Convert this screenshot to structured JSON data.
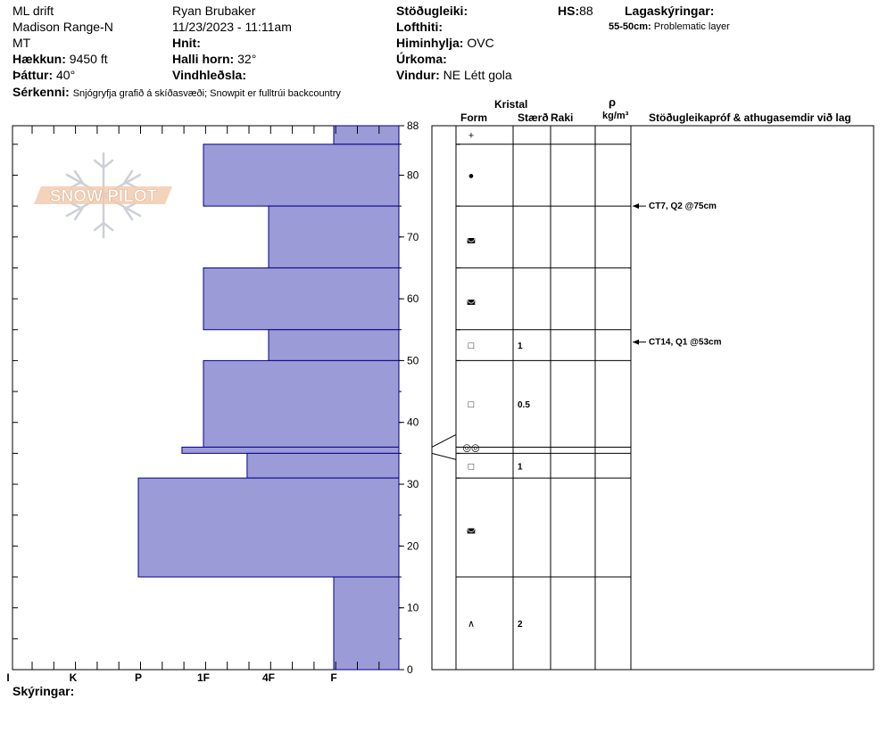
{
  "header": {
    "location_line1": "ML drift",
    "location_line2": "Madison Range-N",
    "location_line3": "MT",
    "elevation_label": "Hækkun:",
    "elevation_value": "9450 ft",
    "aspect_label": "Þáttur:",
    "aspect_value": "40°",
    "observer": "Ryan Brubaker",
    "datetime": "11/23/2023 - 11:11am",
    "coords_label": "Hnit:",
    "slope_label": "Halli horn:",
    "slope_value": "32°",
    "wind_loading_label": "Vindhleðsla:",
    "stability_label": "Stöðugleiki:",
    "hs_label": "HS:",
    "hs_value": "88",
    "air_temp_label": "Lofthiti:",
    "sky_label": "Himinhylja:",
    "sky_value": "OVC",
    "precip_label": "Úrkoma:",
    "wind_label": "Vindur:",
    "wind_value": "NE Létt gola",
    "layers_title": "Lagaskýringar:",
    "layer_note_range": "55-50cm:",
    "layer_note_text": "Problematic layer",
    "features_label": "Sérkenni:",
    "features_value": "Snjógryfja grafið á skíðasvæði;  Snowpit er fulltrúi backcountry"
  },
  "logo_text": "SNOW PILOT",
  "table_headers": {
    "crystal": "Kristal",
    "form": "Form",
    "size": "Stærð",
    "moisture": "Raki",
    "rho": "ρ",
    "density_unit": "kg/m³",
    "tests": "Stöðugleikapróf & athugasemdir við lag"
  },
  "legend_label": "Skýringar:",
  "colors": {
    "bar_fill": "#9b9bd7",
    "bar_stroke": "#00008b",
    "grid": "#000000"
  },
  "chart_data": {
    "type": "bar",
    "title": "",
    "xlabel": "",
    "ylabel": "",
    "ylim": [
      0,
      88
    ],
    "y_ticks": [
      0,
      10,
      20,
      30,
      40,
      50,
      60,
      70,
      80,
      88
    ],
    "hardness_scale": [
      "I",
      "K",
      "P",
      "1F",
      "4F",
      "F"
    ],
    "hardness_order_right_to_left": [
      "F",
      "4F",
      "1F",
      "P",
      "K",
      "I"
    ],
    "layers": [
      {
        "top": 88,
        "bottom": 85,
        "hardness": "F",
        "hardness_value": 1,
        "form": "+",
        "size": ""
      },
      {
        "top": 85,
        "bottom": 75,
        "hardness": "1F",
        "hardness_value": 3,
        "form": "●",
        "size": ""
      },
      {
        "top": 75,
        "bottom": 65,
        "hardness": "4F",
        "hardness_value": 2,
        "form": "◛",
        "size": ""
      },
      {
        "top": 65,
        "bottom": 55,
        "hardness": "1F",
        "hardness_value": 3,
        "form": "◛",
        "size": ""
      },
      {
        "top": 55,
        "bottom": 50,
        "hardness": "4F",
        "hardness_value": 2,
        "form": "□",
        "size": "1"
      },
      {
        "top": 50,
        "bottom": 36,
        "hardness": "1F",
        "hardness_value": 3,
        "form": "□",
        "size": "0.5"
      },
      {
        "top": 36,
        "bottom": 35,
        "hardness": "1F-P",
        "hardness_value": 3.33,
        "form": "◎◎",
        "size": ""
      },
      {
        "top": 35,
        "bottom": 31,
        "hardness": "4F-1F",
        "hardness_value": 2.33,
        "form": "□",
        "size": "1"
      },
      {
        "top": 31,
        "bottom": 15,
        "hardness": "P",
        "hardness_value": 4,
        "form": "◛",
        "size": ""
      },
      {
        "top": 15,
        "bottom": 0,
        "hardness": "F",
        "hardness_value": 1,
        "form": "∧",
        "size": "2"
      }
    ],
    "tests": [
      {
        "depth": 75,
        "label": "CT7, Q2 @75cm"
      },
      {
        "depth": 53,
        "label": "CT14, Q1 @53cm"
      }
    ]
  }
}
